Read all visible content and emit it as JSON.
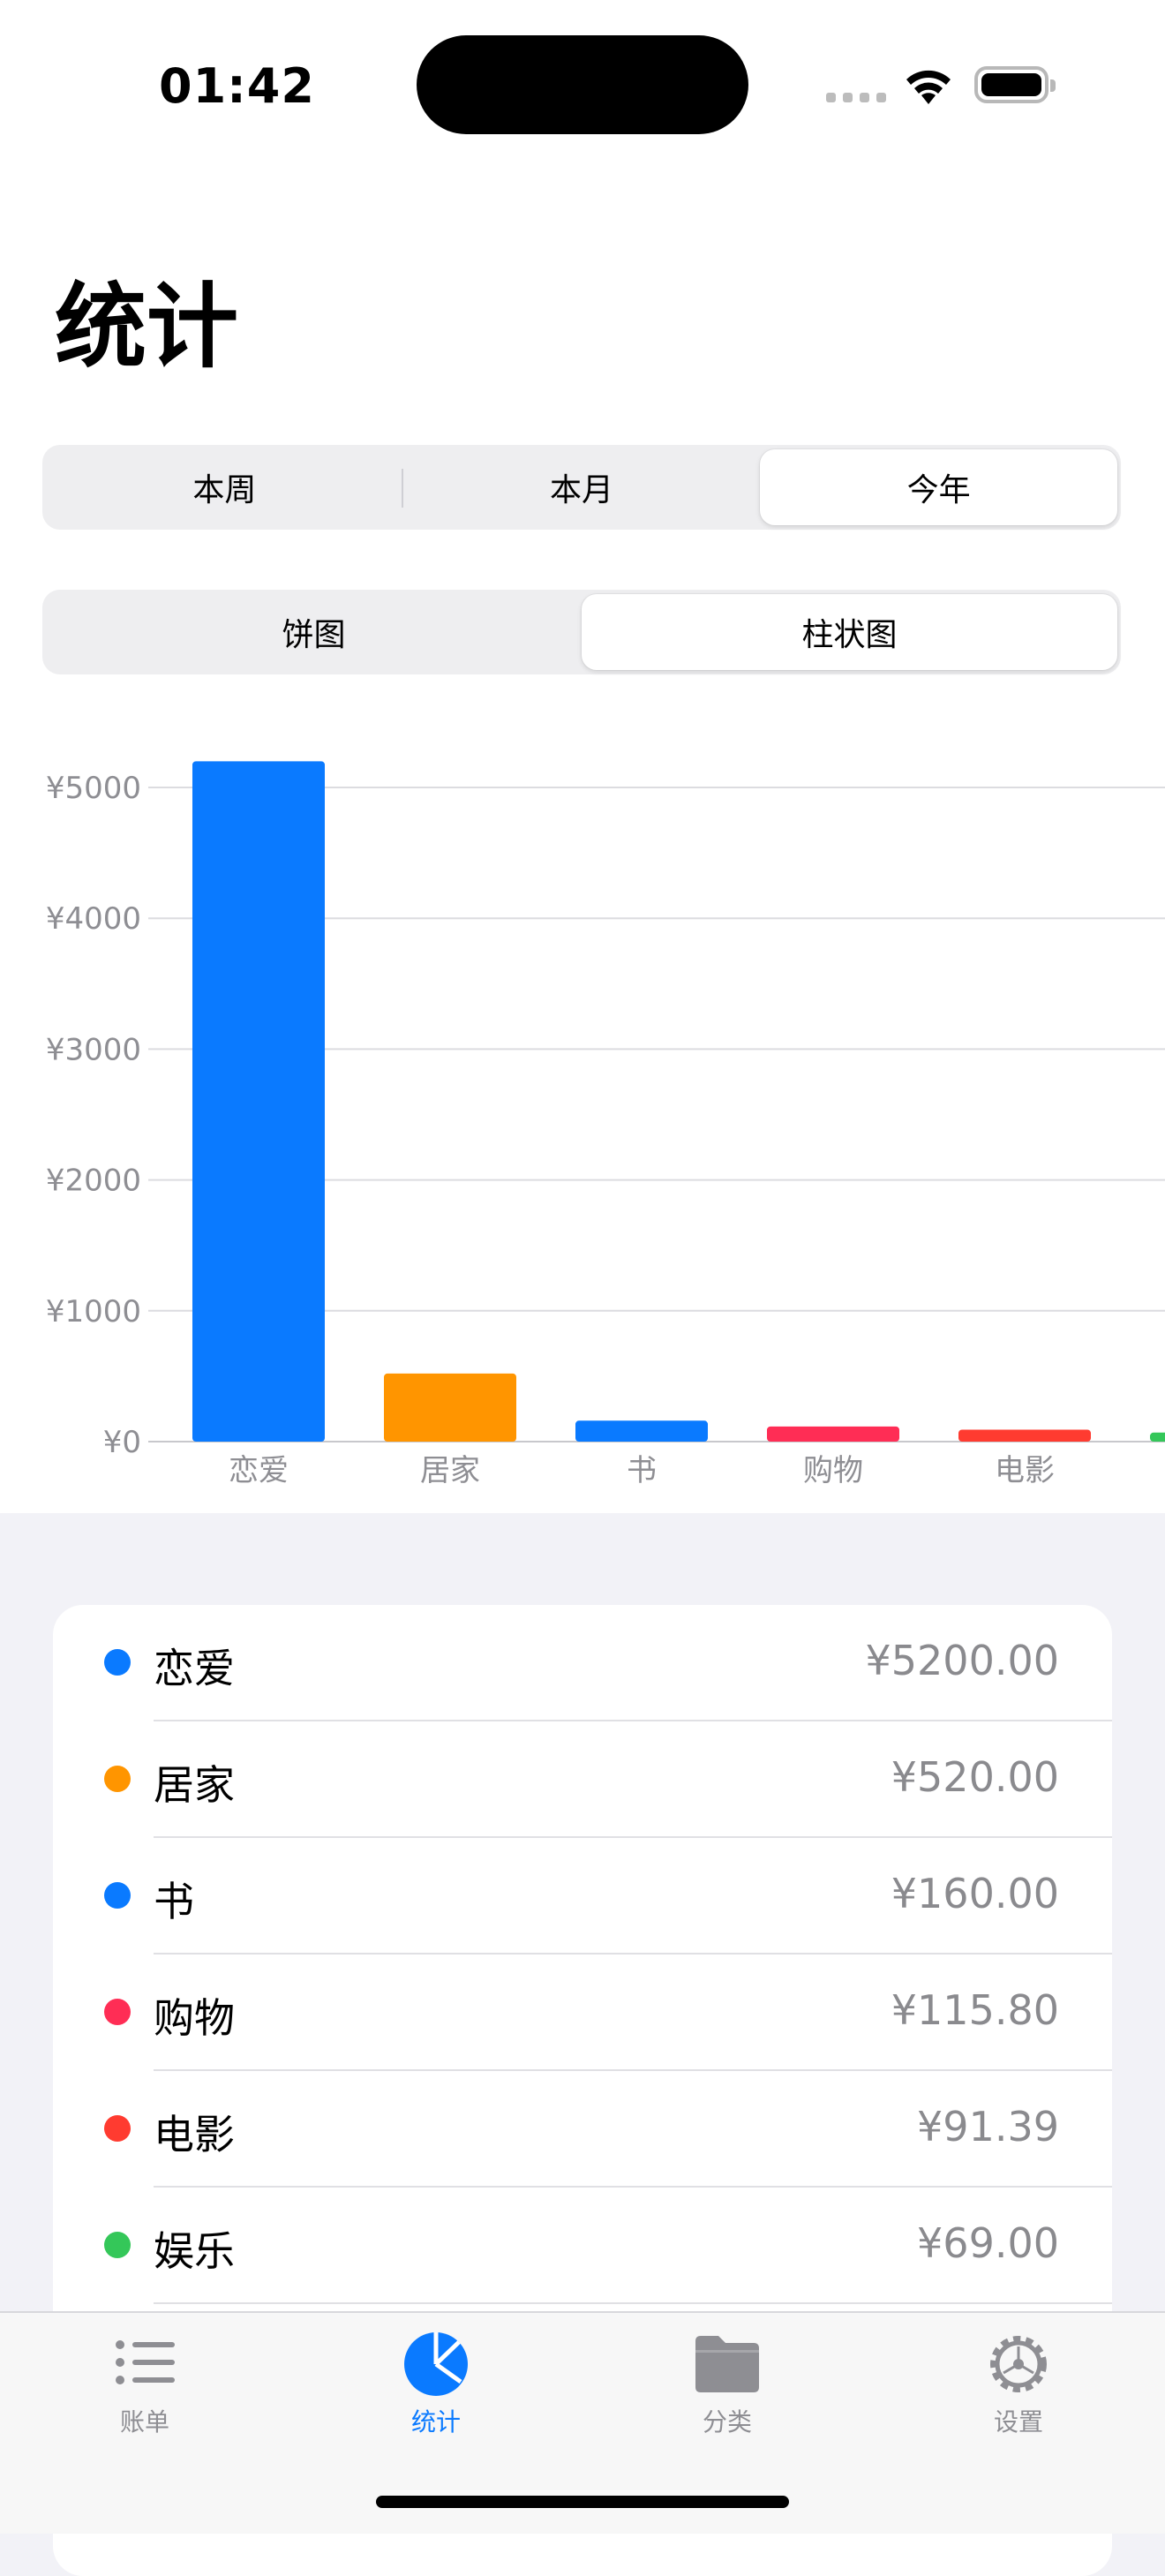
{
  "status": {
    "time": "01:42"
  },
  "page": {
    "title": "统计"
  },
  "period_tabs": [
    "本周",
    "本月",
    "今年"
  ],
  "chart_tabs": [
    "饼图",
    "柱状图"
  ],
  "chart_data": {
    "type": "bar",
    "categories": [
      "恋爱",
      "居家",
      "书",
      "购物",
      "电影",
      "娱乐"
    ],
    "values": [
      5200,
      520,
      160,
      115.8,
      91.39,
      69
    ],
    "colors": [
      "#0a7aff",
      "#ff9500",
      "#0a7aff",
      "#ff2d55",
      "#ff3b30",
      "#34c759"
    ],
    "y_ticks": [
      "¥0",
      "¥1000",
      "¥2000",
      "¥3000",
      "¥4000",
      "¥5000"
    ],
    "ylim": [
      0,
      5000
    ],
    "grid": true
  },
  "breakdown": [
    {
      "name": "恋爱",
      "amount": "¥5200.00",
      "color": "#0a7aff"
    },
    {
      "name": "居家",
      "amount": "¥520.00",
      "color": "#ff9500"
    },
    {
      "name": "书",
      "amount": "¥160.00",
      "color": "#0a7aff"
    },
    {
      "name": "购物",
      "amount": "¥115.80",
      "color": "#ff2d55"
    },
    {
      "name": "电影",
      "amount": "¥91.39",
      "color": "#ff3b30"
    },
    {
      "name": "娱乐",
      "amount": "¥69.00",
      "color": "#34c759"
    }
  ],
  "tabbar": [
    {
      "label": "账单",
      "icon": "list-icon"
    },
    {
      "label": "统计",
      "icon": "pie-chart-icon"
    },
    {
      "label": "分类",
      "icon": "folder-icon"
    },
    {
      "label": "设置",
      "icon": "gear-icon"
    }
  ],
  "accent": "#0a7aff"
}
